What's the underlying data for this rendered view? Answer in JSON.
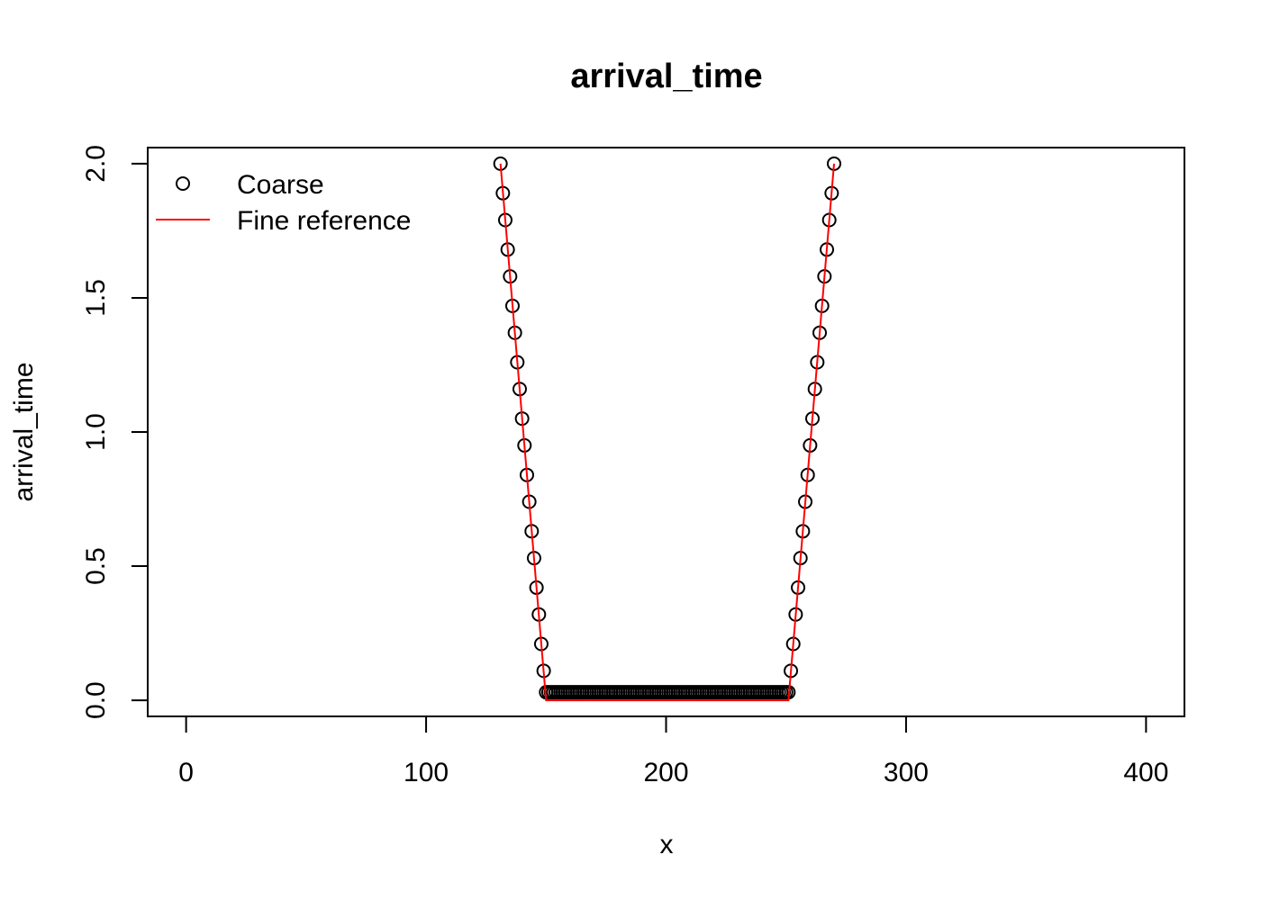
{
  "chart_data": {
    "type": "scatter",
    "title": "arrival_time",
    "xlabel": "x",
    "ylabel": "arrival_time",
    "xlim": [
      -16,
      416
    ],
    "ylim": [
      -0.06,
      2.06
    ],
    "x_ticks": [
      "0",
      "100",
      "200",
      "300",
      "400"
    ],
    "y_ticks": [
      "0.0",
      "0.5",
      "1.0",
      "1.5",
      "2.0"
    ],
    "grid": false,
    "legend_position": "top-left",
    "legend": [
      {
        "label": "Coarse",
        "style": "points",
        "color": "#000000"
      },
      {
        "label": "Fine reference",
        "style": "line",
        "color": "#ff0000"
      }
    ],
    "series": [
      {
        "name": "Coarse",
        "style": "points",
        "color": "#000000",
        "x": [
          131,
          132,
          133,
          134,
          135,
          136,
          137,
          138,
          139,
          140,
          141,
          142,
          143,
          144,
          145,
          146,
          147,
          148,
          149,
          150,
          151,
          152,
          153,
          154,
          155,
          156,
          157,
          158,
          159,
          160,
          161,
          162,
          163,
          164,
          165,
          166,
          167,
          168,
          169,
          170,
          171,
          172,
          173,
          174,
          175,
          176,
          177,
          178,
          179,
          180,
          181,
          182,
          183,
          184,
          185,
          186,
          187,
          188,
          189,
          190,
          191,
          192,
          193,
          194,
          195,
          196,
          197,
          198,
          199,
          200,
          201,
          202,
          203,
          204,
          205,
          206,
          207,
          208,
          209,
          210,
          211,
          212,
          213,
          214,
          215,
          216,
          217,
          218,
          219,
          220,
          221,
          222,
          223,
          224,
          225,
          226,
          227,
          228,
          229,
          230,
          231,
          232,
          233,
          234,
          235,
          236,
          237,
          238,
          239,
          240,
          241,
          242,
          243,
          244,
          245,
          246,
          247,
          248,
          249,
          250,
          251,
          252,
          253,
          254,
          255,
          256,
          257,
          258,
          259,
          260,
          261,
          262,
          263,
          264,
          265,
          266,
          267,
          268,
          269,
          270
        ],
        "y": [
          2.0,
          1.89,
          1.79,
          1.68,
          1.58,
          1.47,
          1.37,
          1.26,
          1.16,
          1.05,
          0.95,
          0.84,
          0.74,
          0.63,
          0.53,
          0.42,
          0.32,
          0.21,
          0.11,
          0.03,
          0.03,
          0.03,
          0.03,
          0.03,
          0.03,
          0.03,
          0.03,
          0.03,
          0.03,
          0.03,
          0.03,
          0.03,
          0.03,
          0.03,
          0.03,
          0.03,
          0.03,
          0.03,
          0.03,
          0.03,
          0.03,
          0.03,
          0.03,
          0.03,
          0.03,
          0.03,
          0.03,
          0.03,
          0.03,
          0.03,
          0.03,
          0.03,
          0.03,
          0.03,
          0.03,
          0.03,
          0.03,
          0.03,
          0.03,
          0.03,
          0.03,
          0.03,
          0.03,
          0.03,
          0.03,
          0.03,
          0.03,
          0.03,
          0.03,
          0.03,
          0.03,
          0.03,
          0.03,
          0.03,
          0.03,
          0.03,
          0.03,
          0.03,
          0.03,
          0.03,
          0.03,
          0.03,
          0.03,
          0.03,
          0.03,
          0.03,
          0.03,
          0.03,
          0.03,
          0.03,
          0.03,
          0.03,
          0.03,
          0.03,
          0.03,
          0.03,
          0.03,
          0.03,
          0.03,
          0.03,
          0.03,
          0.03,
          0.03,
          0.03,
          0.03,
          0.03,
          0.03,
          0.03,
          0.03,
          0.03,
          0.03,
          0.03,
          0.03,
          0.03,
          0.03,
          0.03,
          0.03,
          0.03,
          0.03,
          0.03,
          0.03,
          0.11,
          0.21,
          0.32,
          0.42,
          0.53,
          0.63,
          0.74,
          0.84,
          0.95,
          1.05,
          1.16,
          1.26,
          1.37,
          1.47,
          1.58,
          1.68,
          1.79,
          1.89,
          2.0
        ]
      },
      {
        "name": "Fine reference",
        "style": "line",
        "color": "#ff0000",
        "x": [
          131,
          150,
          150,
          251,
          251,
          270
        ],
        "y": [
          2.0,
          0.0,
          0.0,
          0.0,
          0.0,
          2.0
        ]
      }
    ]
  }
}
